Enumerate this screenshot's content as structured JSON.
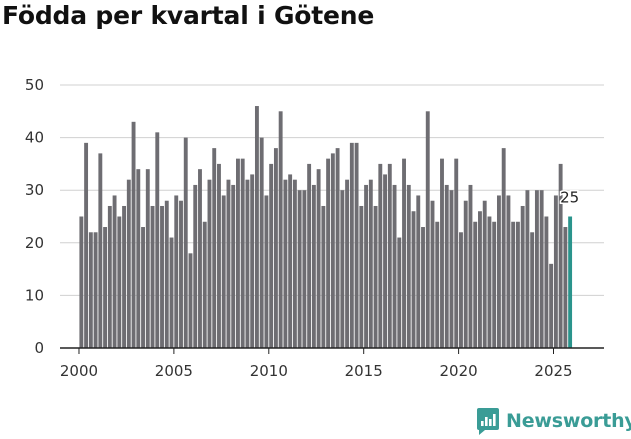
{
  "title": "Födda per kvartal i Götene",
  "brand": "Newsworthy",
  "colors": {
    "bar": "#6e6d72",
    "highlight": "#2a948c",
    "grid": "#d0d0d0",
    "brand": "#3a9c96"
  },
  "chart_data": {
    "type": "bar",
    "title": "Födda per kvartal i Götene",
    "xlabel": "",
    "ylabel": "",
    "ylim": [
      0,
      50
    ],
    "yticks": [
      0,
      10,
      20,
      30,
      40,
      50
    ],
    "xticks": [
      2000,
      2005,
      2010,
      2015,
      2020,
      2025
    ],
    "x_start": 2000,
    "x_step": 0.25,
    "grid": true,
    "highlight_last": true,
    "last_value_label": "25",
    "values": [
      25,
      39,
      22,
      22,
      37,
      23,
      27,
      29,
      25,
      27,
      32,
      43,
      34,
      23,
      34,
      27,
      41,
      27,
      28,
      21,
      29,
      28,
      40,
      18,
      31,
      34,
      24,
      32,
      38,
      35,
      29,
      32,
      31,
      36,
      36,
      32,
      33,
      46,
      40,
      29,
      35,
      38,
      45,
      32,
      33,
      32,
      30,
      30,
      35,
      31,
      34,
      27,
      36,
      37,
      38,
      30,
      32,
      39,
      39,
      27,
      31,
      32,
      27,
      35,
      33,
      35,
      31,
      21,
      36,
      31,
      26,
      29,
      23,
      45,
      28,
      24,
      36,
      31,
      30,
      36,
      22,
      28,
      31,
      24,
      26,
      28,
      25,
      24,
      29,
      38,
      29,
      24,
      24,
      27,
      30,
      22,
      30,
      30,
      25,
      16,
      29,
      35,
      23,
      25
    ]
  }
}
